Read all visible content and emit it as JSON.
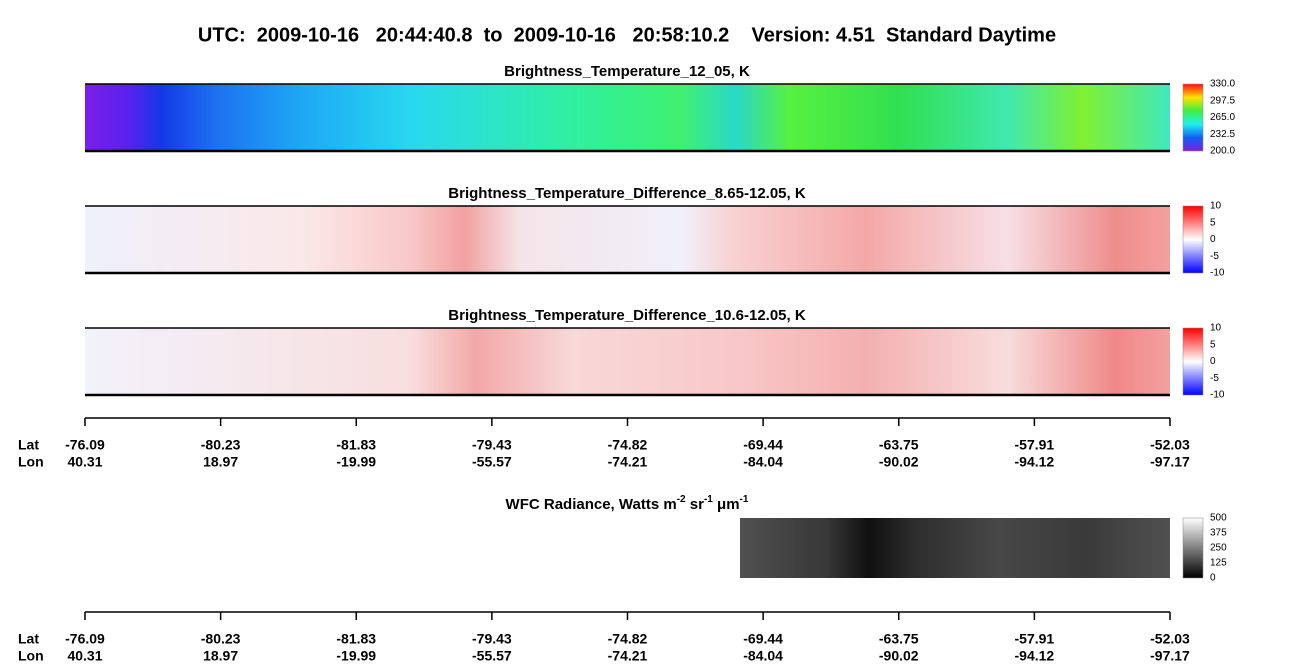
{
  "header": {
    "title": "UTC:  2009-10-16   20:44:40.8  to  2009-10-16   20:58:10.2    Version: 4.51  Standard Daytime"
  },
  "panels": [
    {
      "title": "Brightness_Temperature_12_05, K",
      "colorbar": [
        "330.0",
        "297.5",
        "265.0",
        "232.5",
        "200.0"
      ]
    },
    {
      "title": "Brightness_Temperature_Difference_8.65-12.05, K",
      "colorbar": [
        "10",
        "5",
        "0",
        "-5",
        "-10"
      ]
    },
    {
      "title": "Brightness_Temperature_Difference_10.6-12.05, K",
      "colorbar": [
        "10",
        "5",
        "0",
        "-5",
        "-10"
      ]
    }
  ],
  "wfc": {
    "title_parts": [
      "WFC Radiance, Watts m",
      "-2",
      " sr",
      "-1",
      " μm",
      "-1"
    ],
    "colorbar": [
      "500",
      "375",
      "250",
      "125",
      "0"
    ]
  },
  "geo_axis": {
    "lat_label": "Lat",
    "lon_label": "Lon",
    "lat": [
      "-76.09",
      "-80.23",
      "-81.83",
      "-79.43",
      "-74.82",
      "-69.44",
      "-63.75",
      "-57.91",
      "-52.03"
    ],
    "lon": [
      "40.31",
      "18.97",
      "-19.99",
      "-55.57",
      "-74.21",
      "-84.04",
      "-90.02",
      "-94.12",
      "-97.17"
    ]
  }
}
